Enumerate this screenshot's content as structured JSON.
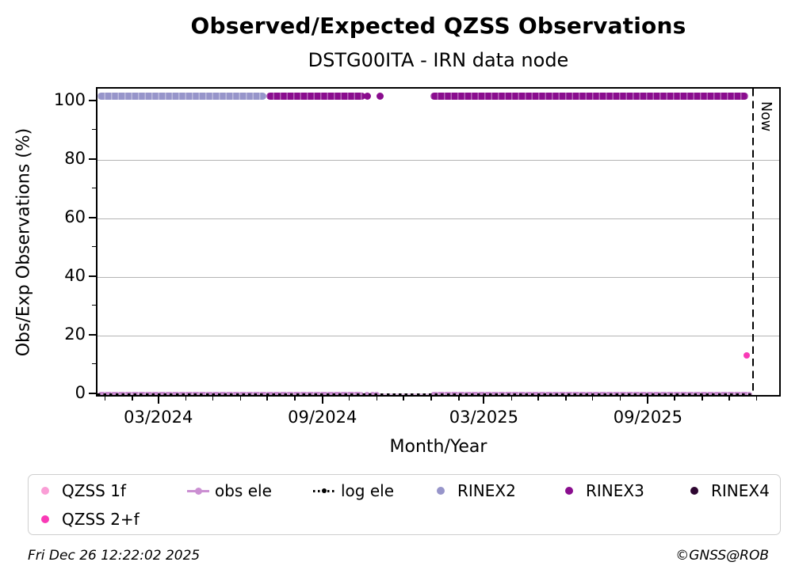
{
  "chart_data": {
    "type": "scatter",
    "title": "Observed/Expected QZSS Observations",
    "subtitle": "DSTG00ITA - IRN data node",
    "xlabel": "Month/Year",
    "ylabel": "Obs/Exp Observations (%)",
    "ylim": [
      -1.2,
      104.5
    ],
    "yticks": [
      0,
      20,
      40,
      60,
      80,
      100
    ],
    "yminorticks": [
      10,
      30,
      50,
      70,
      90
    ],
    "grid": "horizontal",
    "grid_values": [
      20,
      40,
      60,
      80
    ],
    "grid_color": "#b4b4b4",
    "xdomain": [
      "2023-12-22",
      "2026-01-28"
    ],
    "xticks": [
      {
        "date": "2024-03-01",
        "label": "03/2024"
      },
      {
        "date": "2024-09-01",
        "label": "09/2024"
      },
      {
        "date": "2025-03-01",
        "label": "03/2025"
      },
      {
        "date": "2025-09-01",
        "label": "09/2025"
      }
    ],
    "now_marker": {
      "date": "2025-12-26",
      "label": "Now"
    },
    "series": [
      {
        "name": "RINEX2",
        "color": "#9795ca",
        "y": 102,
        "band_height": 9,
        "segments": [
          [
            "2023-12-22",
            "2024-06-28"
          ]
        ],
        "points": []
      },
      {
        "name": "RINEX3",
        "color": "#8a0d8e",
        "y": 102,
        "band_height": 9,
        "segments": [
          [
            "2024-06-28",
            "2024-10-17"
          ],
          [
            "2024-12-29",
            "2025-12-21"
          ]
        ],
        "points": [
          "2024-10-20",
          "2024-11-03"
        ]
      },
      {
        "name": "RINEX4",
        "color": "#2e0631",
        "y": 102,
        "band_height": 9,
        "segments": [],
        "points": []
      },
      {
        "name": "obs ele",
        "color": "#cb8fd2",
        "y": 0,
        "band_height": 8,
        "segments": [
          [
            "2023-12-22",
            "2024-10-16"
          ],
          [
            "2024-12-29",
            "2025-12-25"
          ]
        ],
        "points": [
          "2024-10-19",
          "2024-10-25",
          "2024-10-30"
        ],
        "thin_segments": [
          [
            "2024-10-30",
            "2024-12-29"
          ]
        ]
      },
      {
        "name": "log ele",
        "color": "#000000",
        "y": 0,
        "band_height": 4,
        "style": "dotted",
        "segments": [
          [
            "2023-12-22",
            "2025-12-25"
          ]
        ],
        "points": []
      },
      {
        "name": "QZSS 1f",
        "color": "#fa9ed6",
        "points_xy": []
      },
      {
        "name": "QZSS 2+f",
        "color": "#f93ab6",
        "point_diameter": 8,
        "points_xy": [
          [
            "2025-12-19",
            13.5
          ]
        ]
      }
    ],
    "legend": {
      "rows": [
        [
          {
            "label": "QZSS 1f",
            "marker": "dot",
            "color": "#fa9ed6"
          },
          {
            "label": "obs ele",
            "marker": "line-dot",
            "color": "#cb8fd2"
          },
          {
            "label": "log ele",
            "marker": "dotted-line",
            "color": "#000000"
          },
          {
            "label": "RINEX2",
            "marker": "dot",
            "color": "#9795ca"
          },
          {
            "label": "RINEX3",
            "marker": "dot",
            "color": "#8a0d8e"
          },
          {
            "label": "RINEX4",
            "marker": "dot",
            "color": "#2e0631"
          }
        ],
        [
          {
            "label": "QZSS 2+f",
            "marker": "dot",
            "color": "#f93ab6"
          }
        ]
      ]
    }
  },
  "footer": {
    "timestamp": "Fri Dec 26 12:22:02 2025",
    "credit": "©GNSS@ROB"
  }
}
